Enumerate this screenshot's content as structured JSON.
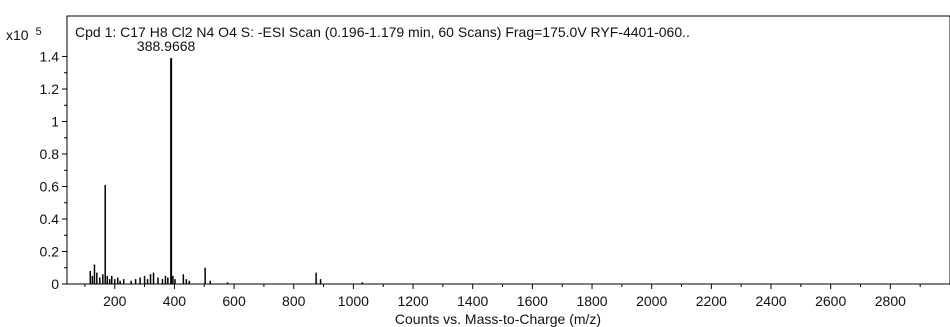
{
  "chart_data": {
    "type": "bar",
    "title": "Cpd 1: C17 H8 Cl2 N4 O4 S: -ESI Scan (0.196-1.179 min, 60 Scans) Frag=175.0V RYF-4401-060..",
    "xlabel": "Counts vs. Mass-to-Charge (m/z)",
    "ylabel": "",
    "y_multiplier": "x10",
    "y_multiplier_exp": "5",
    "xlim": [
      50,
      3000
    ],
    "ylim": [
      0,
      1.6
    ],
    "x_ticks": [
      200,
      400,
      600,
      800,
      1000,
      1200,
      1400,
      1600,
      1800,
      2000,
      2200,
      2400,
      2600,
      2800
    ],
    "x_tick_labels": [
      "200",
      "400",
      "600",
      "800",
      "1000",
      "1200",
      "1400",
      "1600",
      "1800",
      "2000",
      "2200",
      "2400",
      "2600",
      "2800"
    ],
    "y_ticks": [
      0,
      0.2,
      0.4,
      0.6,
      0.8,
      1,
      1.2,
      1.4
    ],
    "y_tick_labels": [
      "0",
      "0.2",
      "0.4",
      "0.6",
      "0.8",
      "1",
      "1.2",
      "1.4"
    ],
    "peak_label": "388.9668",
    "peaks": {
      "x": [
        118,
        125,
        132,
        140,
        150,
        160,
        168,
        175,
        183,
        190,
        200,
        210,
        218,
        230,
        255,
        270,
        285,
        300,
        310,
        320,
        330,
        345,
        360,
        370,
        378,
        389,
        395,
        402,
        430,
        440,
        450,
        503,
        520,
        578,
        875,
        890,
        1030
      ],
      "y": [
        0.08,
        0.05,
        0.12,
        0.07,
        0.04,
        0.06,
        0.61,
        0.05,
        0.03,
        0.05,
        0.03,
        0.04,
        0.02,
        0.03,
        0.02,
        0.03,
        0.04,
        0.05,
        0.03,
        0.06,
        0.07,
        0.04,
        0.03,
        0.05,
        0.04,
        1.39,
        0.05,
        0.03,
        0.06,
        0.03,
        0.02,
        0.1,
        0.02,
        0.01,
        0.07,
        0.03,
        0.01
      ]
    }
  }
}
